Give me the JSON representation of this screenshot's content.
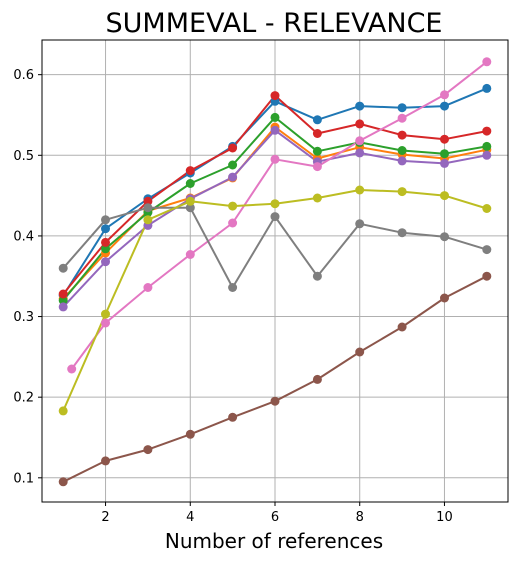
{
  "chart_data": {
    "type": "line",
    "title": "SUMMEVAL - RELEVANCE",
    "xlabel": "Number of references",
    "ylabel": "",
    "xlim": [
      0.5,
      11.5
    ],
    "ylim": [
      0.07,
      0.643
    ],
    "xticks": [
      2,
      4,
      6,
      8,
      10
    ],
    "yticks": [
      0.1,
      0.2,
      0.3,
      0.4,
      0.5,
      0.6
    ],
    "grid": true,
    "series": [
      {
        "color": "#1f77b4",
        "x": [
          1,
          2,
          3,
          4,
          5,
          6,
          7,
          8,
          9,
          10,
          11
        ],
        "y": [
          0.326,
          0.409,
          0.446,
          0.478,
          0.511,
          0.567,
          0.544,
          0.561,
          0.559,
          0.561,
          0.583
        ]
      },
      {
        "color": "#ff7f0e",
        "x": [
          1,
          2,
          3,
          4,
          5,
          6,
          7,
          8,
          9,
          10,
          11
        ],
        "y": [
          0.322,
          0.379,
          0.431,
          0.447,
          0.472,
          0.535,
          0.496,
          0.51,
          0.501,
          0.496,
          0.507
        ]
      },
      {
        "color": "#2ca02c",
        "x": [
          1,
          2,
          3,
          4,
          5,
          6,
          7,
          8,
          9,
          10,
          11
        ],
        "y": [
          0.32,
          0.384,
          0.429,
          0.465,
          0.488,
          0.547,
          0.505,
          0.516,
          0.506,
          0.502,
          0.511
        ]
      },
      {
        "color": "#d62728",
        "x": [
          1,
          2,
          3,
          4,
          5,
          6,
          7,
          8,
          9,
          10,
          11
        ],
        "y": [
          0.328,
          0.392,
          0.443,
          0.481,
          0.509,
          0.574,
          0.527,
          0.539,
          0.525,
          0.52,
          0.53
        ]
      },
      {
        "color": "#9467bd",
        "x": [
          1,
          2,
          3,
          4,
          5,
          6,
          7,
          8,
          9,
          10,
          11
        ],
        "y": [
          0.312,
          0.368,
          0.413,
          0.446,
          0.473,
          0.531,
          0.492,
          0.503,
          0.493,
          0.49,
          0.5
        ]
      },
      {
        "color": "#8c564b",
        "x": [
          1,
          2,
          3,
          4,
          5,
          6,
          7,
          8,
          9,
          10,
          11
        ],
        "y": [
          0.095,
          0.121,
          0.135,
          0.154,
          0.175,
          0.195,
          0.222,
          0.256,
          0.287,
          0.323,
          0.35
        ]
      },
      {
        "color": "#e377c2",
        "x": [
          1.2,
          2,
          3,
          4,
          5,
          6,
          7,
          8,
          9,
          10,
          11
        ],
        "y": [
          0.235,
          0.292,
          0.336,
          0.377,
          0.416,
          0.495,
          0.486,
          0.518,
          0.546,
          0.575,
          0.616
        ]
      },
      {
        "color": "#7f7f7f",
        "x": [
          1,
          2,
          3,
          4,
          5,
          6,
          7,
          8,
          9,
          10,
          11
        ],
        "y": [
          0.36,
          0.42,
          0.435,
          0.435,
          0.336,
          0.424,
          0.35,
          0.415,
          0.404,
          0.399,
          0.383
        ]
      },
      {
        "color": "#bcbd22",
        "x": [
          1,
          2,
          3,
          4,
          5,
          6,
          7,
          8,
          9,
          10,
          11
        ],
        "y": [
          0.183,
          0.303,
          0.42,
          0.443,
          0.437,
          0.44,
          0.447,
          0.457,
          0.455,
          0.45,
          0.434
        ]
      }
    ]
  }
}
